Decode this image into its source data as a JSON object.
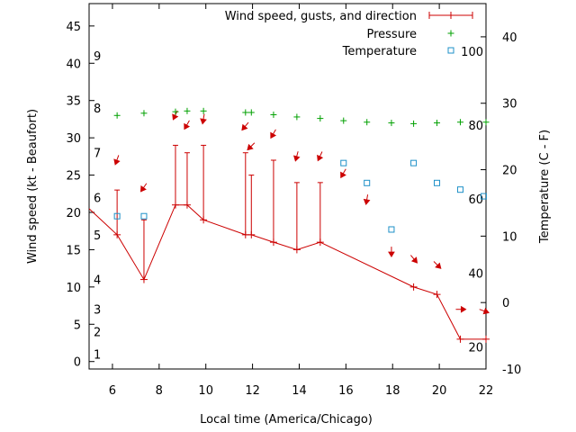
{
  "chart_data": {
    "type": "line",
    "x_ticks": [
      6,
      8,
      10,
      12,
      14,
      16,
      18,
      20,
      22
    ],
    "xlabel": "Local time (America/Chicago)",
    "xlim": [
      5,
      22
    ],
    "ylabel": "Wind speed (kt - Beaufort)",
    "ylim": [
      -1,
      48
    ],
    "y_ticks": [
      0,
      5,
      10,
      15,
      20,
      25,
      30,
      35,
      40,
      45
    ],
    "beaufort_labels": [
      {
        "y": 1,
        "label": "1"
      },
      {
        "y": 4,
        "label": "2"
      },
      {
        "y": 7,
        "label": "3"
      },
      {
        "y": 11,
        "label": "4"
      },
      {
        "y": 17,
        "label": "5"
      },
      {
        "y": 22,
        "label": "6"
      },
      {
        "y": 28,
        "label": "7"
      },
      {
        "y": 34,
        "label": "8"
      },
      {
        "y": 41,
        "label": "9"
      }
    ],
    "y2label": "Temperature (C - F)",
    "y2lim": [
      -10,
      45
    ],
    "y2_ticks": [
      -10,
      0,
      10,
      20,
      30,
      40
    ],
    "fahrenheit_labels": [
      {
        "y": -6.7,
        "label": "20"
      },
      {
        "y": 4.4,
        "label": "40"
      },
      {
        "y": 15.6,
        "label": "60"
      },
      {
        "y": 26.7,
        "label": "80"
      },
      {
        "y": 37.8,
        "label": "100"
      }
    ],
    "legend_position": "top-right",
    "grid": false,
    "series": [
      {
        "name": "Wind speed, gusts, and direction",
        "color": "#cc0000",
        "axis": "y",
        "points": [
          {
            "x": 5.0,
            "y": 20.5
          },
          {
            "x": 6.2,
            "y": 17,
            "gust": 23
          },
          {
            "x": 7.35,
            "y": 11,
            "gust": 19
          },
          {
            "x": 8.7,
            "y": 21,
            "gust": 29
          },
          {
            "x": 9.2,
            "y": 21,
            "gust": 28
          },
          {
            "x": 9.9,
            "y": 19,
            "gust": 29
          },
          {
            "x": 11.7,
            "y": 17,
            "gust": 28
          },
          {
            "x": 11.95,
            "y": 17,
            "gust": 25
          },
          {
            "x": 12.9,
            "y": 16,
            "gust": 27
          },
          {
            "x": 13.9,
            "y": 15,
            "gust": 24
          },
          {
            "x": 14.9,
            "y": 16,
            "gust": 24
          },
          {
            "x": 18.9,
            "y": 10
          },
          {
            "x": 19.9,
            "y": 9
          },
          {
            "x": 20.9,
            "y": 3
          },
          {
            "x": 22.0,
            "y": 3
          }
        ],
        "direction_arrows": [
          {
            "x": 6.2,
            "y": 27.1,
            "angle": 110
          },
          {
            "x": 7.35,
            "y": 23.4,
            "angle": 125
          },
          {
            "x": 8.7,
            "y": 33.1,
            "angle": 115
          },
          {
            "x": 9.2,
            "y": 31.8,
            "angle": 120
          },
          {
            "x": 9.9,
            "y": 32.6,
            "angle": 100
          },
          {
            "x": 11.7,
            "y": 31.6,
            "angle": 130
          },
          {
            "x": 11.95,
            "y": 28.9,
            "angle": 135
          },
          {
            "x": 12.9,
            "y": 30.6,
            "angle": 120
          },
          {
            "x": 13.9,
            "y": 27.6,
            "angle": 105
          },
          {
            "x": 14.9,
            "y": 27.6,
            "angle": 115
          },
          {
            "x": 15.9,
            "y": 25.3,
            "angle": 120
          },
          {
            "x": 16.9,
            "y": 21.8,
            "angle": 100
          },
          {
            "x": 17.95,
            "y": 14.8,
            "angle": 90
          },
          {
            "x": 18.9,
            "y": 13.8,
            "angle": 50
          },
          {
            "x": 19.9,
            "y": 13.0,
            "angle": 45
          },
          {
            "x": 20.9,
            "y": 7.0,
            "angle": 0
          },
          {
            "x": 21.9,
            "y": 6.8,
            "angle": 20
          }
        ]
      },
      {
        "name": "Pressure",
        "color": "#00a000",
        "axis": "y",
        "points": [
          {
            "x": 6.2,
            "y": 33
          },
          {
            "x": 7.35,
            "y": 33.3
          },
          {
            "x": 8.7,
            "y": 33.5
          },
          {
            "x": 9.2,
            "y": 33.6
          },
          {
            "x": 9.9,
            "y": 33.6
          },
          {
            "x": 11.7,
            "y": 33.4
          },
          {
            "x": 11.95,
            "y": 33.4
          },
          {
            "x": 12.9,
            "y": 33.1
          },
          {
            "x": 13.9,
            "y": 32.8
          },
          {
            "x": 14.9,
            "y": 32.6
          },
          {
            "x": 15.9,
            "y": 32.3
          },
          {
            "x": 16.9,
            "y": 32.1
          },
          {
            "x": 17.95,
            "y": 32.0
          },
          {
            "x": 18.9,
            "y": 31.9
          },
          {
            "x": 19.9,
            "y": 32.0
          },
          {
            "x": 20.9,
            "y": 32.1
          },
          {
            "x": 22.0,
            "y": 32.1
          }
        ]
      },
      {
        "name": "Temperature",
        "color": "#1e90c8",
        "axis": "y2",
        "points": [
          {
            "x": 6.2,
            "y": 13
          },
          {
            "x": 7.35,
            "y": 13
          },
          {
            "x": 15.9,
            "y": 21
          },
          {
            "x": 16.9,
            "y": 18
          },
          {
            "x": 17.95,
            "y": 11
          },
          {
            "x": 18.9,
            "y": 21
          },
          {
            "x": 19.9,
            "y": 18
          },
          {
            "x": 20.9,
            "y": 17
          },
          {
            "x": 21.9,
            "y": 16
          }
        ]
      }
    ]
  }
}
